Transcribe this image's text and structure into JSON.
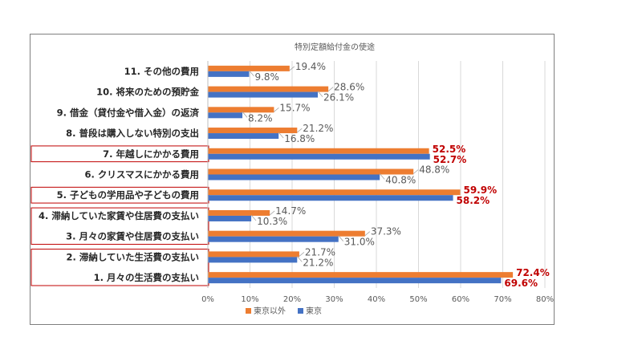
{
  "chart_data": {
    "type": "bar",
    "orientation": "horizontal",
    "title": "特別定額給付金の使途",
    "categories": [
      "11. その他の費用",
      "10. 将来のための預貯金",
      "9. 借金（貸付金や借入金）の返済",
      "8. 普段は購入しない特別の支出",
      "7. 年越しにかかる費用",
      "6. クリスマスにかかる費用",
      "5. 子どもの学用品や子どもの費用",
      "4. 滞納していた家賃や住居費の支払い",
      "3. 月々の家賃や住居費の支払い",
      "2. 滞納していた生活費の支払い",
      "1. 月々の生活費の支払い"
    ],
    "series": [
      {
        "name": "東京以外",
        "color": "#ed7d31",
        "values": [
          19.4,
          28.6,
          15.7,
          21.2,
          52.5,
          48.8,
          59.9,
          14.7,
          37.3,
          21.7,
          72.4
        ],
        "labels": [
          "19.4%",
          "28.6%",
          "15.7%",
          "21.2%",
          "52.5%",
          "48.8%",
          "59.9%",
          "14.7%",
          "37.3%",
          "21.7%",
          "72.4%"
        ]
      },
      {
        "name": "東京",
        "color": "#4472c4",
        "values": [
          9.8,
          26.1,
          8.2,
          16.8,
          52.7,
          40.8,
          58.2,
          10.3,
          31.0,
          21.2,
          69.6
        ],
        "labels": [
          "9.8%",
          "26.1%",
          "8.2%",
          "16.8%",
          "52.7%",
          "40.8%",
          "58.2%",
          "10.3%",
          "31.0%",
          "21.2%",
          "69.6%"
        ]
      }
    ],
    "highlighted_categories": [
      "7. 年越しにかかる費用",
      "5. 子どもの学用品や子どもの費用",
      "1. 月々の生活費の支払い"
    ],
    "highlight_color": "#c00000",
    "boxed_category_groups": [
      [
        "7. 年越しにかかる費用"
      ],
      [
        "5. 子どもの学用品や子どもの費用"
      ],
      [
        "4. 滞納していた家賃や住居費の支払い",
        "3. 月々の家賃や住居費の支払い"
      ],
      [
        "2. 滞納していた生活費の支払い",
        "1. 月々の生活費の支払い"
      ]
    ],
    "xlim": [
      0,
      80
    ],
    "xticks": [
      "0%",
      "10%",
      "20%",
      "30%",
      "40%",
      "50%",
      "60%",
      "70%",
      "80%"
    ],
    "grid": "vertical",
    "legend": "bottom"
  }
}
